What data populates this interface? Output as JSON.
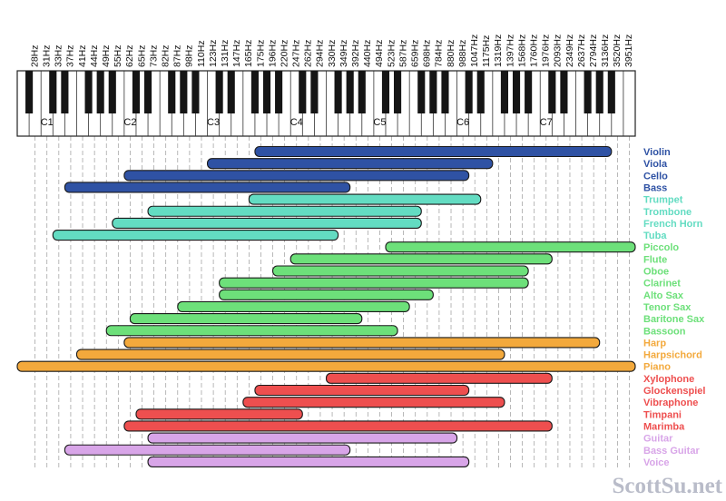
{
  "chart_data": {
    "type": "range-bar",
    "title": "",
    "x_ticks": [
      "28Hz",
      "31Hz",
      "33Hz",
      "37Hz",
      "41Hz",
      "44Hz",
      "49Hz",
      "55Hz",
      "62Hz",
      "65Hz",
      "73Hz",
      "82Hz",
      "87Hz",
      "98Hz",
      "110Hz",
      "123Hz",
      "131Hz",
      "147Hz",
      "165Hz",
      "175Hz",
      "196Hz",
      "220Hz",
      "247Hz",
      "262Hz",
      "294Hz",
      "330Hz",
      "349Hz",
      "392Hz",
      "440Hz",
      "494Hz",
      "523Hz",
      "587Hz",
      "659Hz",
      "698Hz",
      "784Hz",
      "880Hz",
      "988Hz",
      "1047Hz",
      "1175Hz",
      "1319Hz",
      "1397Hz",
      "1568Hz",
      "1760Hz",
      "1976Hz",
      "2093Hz",
      "2349Hz",
      "2637Hz",
      "2794Hz",
      "3136Hz",
      "3520Hz",
      "3951Hz"
    ],
    "octave_labels": [
      "C1",
      "C2",
      "C3",
      "C4",
      "C5",
      "C6",
      "C7"
    ],
    "grid": true,
    "legend_position": "right",
    "series": [
      {
        "name": "Violin",
        "low": "G3",
        "high": "A7",
        "color": "#2f52a4"
      },
      {
        "name": "Viola",
        "low": "C3",
        "high": "E6",
        "color": "#2f52a4"
      },
      {
        "name": "Cello",
        "low": "C2",
        "high": "C6",
        "color": "#2f52a4"
      },
      {
        "name": "Bass",
        "low": "E1",
        "high": "G4",
        "color": "#2f52a4"
      },
      {
        "name": "Trumpet",
        "low": "F#3",
        "high": "D6",
        "color": "#63dcc2"
      },
      {
        "name": "Trombone",
        "low": "E2",
        "high": "F5",
        "color": "#63dcc2"
      },
      {
        "name": "French Horn",
        "low": "B1",
        "high": "F5",
        "color": "#63dcc2"
      },
      {
        "name": "Tuba",
        "low": "D1",
        "high": "F4",
        "color": "#63dcc2"
      },
      {
        "name": "Piccolo",
        "low": "D5",
        "high": "C8",
        "color": "#6de07a"
      },
      {
        "name": "Flute",
        "low": "C4",
        "high": "C7",
        "color": "#6de07a"
      },
      {
        "name": "Oboe",
        "low": "A#3",
        "high": "A6",
        "color": "#6de07a"
      },
      {
        "name": "Clarinet",
        "low": "D3",
        "high": "A6",
        "color": "#6de07a"
      },
      {
        "name": "Alto Sax",
        "low": "D3",
        "high": "G5",
        "color": "#6de07a"
      },
      {
        "name": "Tenor Sax",
        "low": "G#2",
        "high": "E5",
        "color": "#6de07a"
      },
      {
        "name": "Baritone Sax",
        "low": "C#2",
        "high": "A4",
        "color": "#6de07a"
      },
      {
        "name": "Bassoon",
        "low": "A#1",
        "high": "D5",
        "color": "#6de07a"
      },
      {
        "name": "Harp",
        "low": "C2",
        "high": "G7",
        "color": "#f3a93c"
      },
      {
        "name": "Harpsichord",
        "low": "F1",
        "high": "F6",
        "color": "#f3a93c"
      },
      {
        "name": "Piano",
        "low": "A0",
        "high": "C8",
        "color": "#f3a93c"
      },
      {
        "name": "Xylophone",
        "low": "F4",
        "high": "C7",
        "color": "#ee4f4f"
      },
      {
        "name": "Glockenspiel",
        "low": "G3",
        "high": "C6",
        "color": "#ee4f4f"
      },
      {
        "name": "Vibraphone",
        "low": "F3",
        "high": "F6",
        "color": "#ee4f4f"
      },
      {
        "name": "Timpani",
        "low": "D2",
        "high": "C4",
        "color": "#ee4f4f"
      },
      {
        "name": "Marimba",
        "low": "C2",
        "high": "C7",
        "color": "#ee4f4f"
      },
      {
        "name": "Guitar",
        "low": "E2",
        "high": "B5",
        "color": "#d8a5e8"
      },
      {
        "name": "Bass Guitar",
        "low": "E1",
        "high": "G4",
        "color": "#d8a5e8"
      },
      {
        "name": "Voice",
        "low": "E2",
        "high": "C6",
        "color": "#d8a5e8"
      }
    ]
  },
  "watermark": "ScottSu.net"
}
